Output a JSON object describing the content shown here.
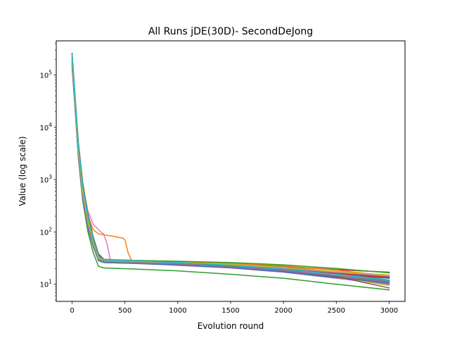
{
  "chart_data": {
    "type": "line",
    "title": "All Runs jDE(30D)- SecondDeJong",
    "xlabel": "Evolution round",
    "ylabel": "Value (log scale)",
    "yscale": "log",
    "xlim": [
      -150,
      3150
    ],
    "ylim": [
      4.7,
      450000
    ],
    "x_ticks": [
      {
        "value": 0,
        "label": "0"
      },
      {
        "value": 500,
        "label": "500"
      },
      {
        "value": 1000,
        "label": "1000"
      },
      {
        "value": 1500,
        "label": "1500"
      },
      {
        "value": 2000,
        "label": "2000"
      },
      {
        "value": 2500,
        "label": "2500"
      },
      {
        "value": 3000,
        "label": "3000"
      }
    ],
    "y_ticks": [
      {
        "value": 10,
        "base": "10",
        "exp": "1"
      },
      {
        "value": 100,
        "base": "10",
        "exp": "2"
      },
      {
        "value": 1000,
        "base": "10",
        "exp": "3"
      },
      {
        "value": 10000,
        "base": "10",
        "exp": "4"
      },
      {
        "value": 100000,
        "base": "10",
        "exp": "5"
      }
    ],
    "grid": false,
    "legend": "none",
    "series": [
      {
        "color": "#1f77b4",
        "x": [
          0,
          30,
          60,
          100,
          150,
          200,
          250,
          300,
          600,
          1000,
          1500,
          2000,
          2500,
          3000
        ],
        "y": [
          180000,
          25000,
          3000,
          500,
          150,
          60,
          30,
          27,
          25.5,
          24,
          22,
          19,
          16,
          13
        ]
      },
      {
        "color": "#ff7f0e",
        "x": [
          0,
          30,
          60,
          100,
          150,
          200,
          250,
          300,
          400,
          480,
          500,
          530,
          560,
          600,
          1000,
          1500,
          2000,
          2500,
          3000
        ],
        "y": [
          250000,
          30000,
          4000,
          700,
          200,
          110,
          92,
          88,
          82,
          76,
          70,
          40,
          29,
          28,
          26,
          23,
          19,
          15,
          11
        ]
      },
      {
        "color": "#2ca02c",
        "x": [
          0,
          30,
          60,
          100,
          150,
          200,
          250,
          300,
          600,
          1000,
          1500,
          2000,
          2500,
          3000
        ],
        "y": [
          150000,
          20000,
          2500,
          400,
          100,
          40,
          22,
          20.5,
          19.5,
          18,
          15.5,
          13,
          10,
          7.8
        ]
      },
      {
        "color": "#d62728",
        "x": [
          0,
          30,
          60,
          100,
          150,
          200,
          250,
          300,
          600,
          1000,
          1500,
          2000,
          2500,
          3000
        ],
        "y": [
          200000,
          28000,
          3500,
          600,
          170,
          65,
          32,
          28,
          27,
          25.5,
          24,
          22,
          19,
          17
        ]
      },
      {
        "color": "#9467bd",
        "x": [
          0,
          30,
          60,
          100,
          150,
          200,
          250,
          300,
          600,
          1000,
          1500,
          2000,
          2500,
          3000
        ],
        "y": [
          160000,
          22000,
          2800,
          450,
          130,
          55,
          29,
          26,
          25,
          23,
          20.5,
          17,
          13,
          10
        ]
      },
      {
        "color": "#8c564b",
        "x": [
          0,
          30,
          60,
          100,
          150,
          200,
          250,
          300,
          600,
          1000,
          1500,
          2000,
          2500,
          3000
        ],
        "y": [
          260000,
          35000,
          5000,
          900,
          220,
          80,
          38,
          30,
          28.5,
          27,
          25,
          22,
          17,
          12
        ]
      },
      {
        "color": "#e377c2",
        "x": [
          0,
          30,
          60,
          100,
          150,
          200,
          250,
          300,
          330,
          360,
          600,
          1000,
          1500,
          2000,
          2500,
          3000
        ],
        "y": [
          220000,
          30000,
          4200,
          800,
          250,
          140,
          110,
          90,
          60,
          30,
          27,
          25,
          22.5,
          19,
          15,
          12
        ]
      },
      {
        "color": "#7f7f7f",
        "x": [
          0,
          30,
          60,
          100,
          150,
          200,
          250,
          300,
          600,
          1000,
          1500,
          2000,
          2500,
          3000
        ],
        "y": [
          170000,
          24000,
          3200,
          520,
          140,
          58,
          30,
          27.5,
          26.5,
          25,
          23,
          20,
          16.5,
          14
        ]
      },
      {
        "color": "#bcbd22",
        "x": [
          0,
          30,
          60,
          100,
          150,
          200,
          250,
          300,
          600,
          1000,
          1500,
          2000,
          2500,
          3000
        ],
        "y": [
          190000,
          26000,
          3400,
          560,
          150,
          62,
          31,
          28,
          27,
          25,
          22,
          18,
          13.5,
          9.5
        ]
      },
      {
        "color": "#17becf",
        "x": [
          0,
          30,
          60,
          100,
          150,
          200,
          250,
          300,
          600,
          1000,
          1500,
          2000,
          2500,
          3000
        ],
        "y": [
          210000,
          27000,
          3600,
          620,
          160,
          66,
          33,
          29,
          28,
          26.5,
          24,
          20.5,
          16,
          11.5
        ]
      },
      {
        "color": "#1f77b4",
        "x": [
          0,
          30,
          60,
          100,
          150,
          200,
          250,
          300,
          600,
          1000,
          1500,
          2000,
          2500,
          3000
        ],
        "y": [
          140000,
          21000,
          2700,
          430,
          120,
          52,
          28,
          26,
          25,
          23.5,
          21,
          17.5,
          13.5,
          10.5
        ]
      },
      {
        "color": "#ff7f0e",
        "x": [
          0,
          30,
          60,
          100,
          150,
          200,
          250,
          300,
          600,
          1000,
          1500,
          2000,
          2500,
          3000
        ],
        "y": [
          230000,
          29000,
          3900,
          680,
          180,
          70,
          34,
          29.5,
          28.5,
          27,
          25,
          22.5,
          18.5,
          14.5
        ]
      },
      {
        "color": "#2ca02c",
        "x": [
          0,
          30,
          60,
          100,
          150,
          200,
          250,
          300,
          600,
          1000,
          1500,
          2000,
          2500,
          3000
        ],
        "y": [
          175000,
          24500,
          3100,
          510,
          145,
          60,
          31,
          29,
          28.5,
          27.5,
          26,
          23.5,
          20,
          16.5
        ]
      },
      {
        "color": "#d62728",
        "x": [
          0,
          30,
          60,
          100,
          150,
          200,
          250,
          300,
          600,
          1000,
          1500,
          2000,
          2500,
          3000
        ],
        "y": [
          195000,
          25500,
          3300,
          540,
          150,
          61,
          30,
          27,
          26,
          24.5,
          22.5,
          19.5,
          16,
          13.5
        ]
      },
      {
        "color": "#9467bd",
        "x": [
          0,
          30,
          60,
          100,
          150,
          200,
          250,
          300,
          600,
          1000,
          1500,
          2000,
          2500,
          3000
        ],
        "y": [
          155000,
          21500,
          2750,
          440,
          125,
          54,
          28.5,
          26.5,
          25.5,
          24,
          21.5,
          18,
          14,
          11
        ]
      },
      {
        "color": "#8c564b",
        "x": [
          0,
          30,
          60,
          100,
          150,
          200,
          250,
          300,
          600,
          1000,
          1500,
          2000,
          2500,
          3000
        ],
        "y": [
          240000,
          32000,
          4600,
          850,
          210,
          75,
          36,
          28,
          27,
          25.5,
          23,
          19,
          14,
          8.5
        ]
      },
      {
        "color": "#e377c2",
        "x": [
          0,
          30,
          60,
          100,
          150,
          200,
          250,
          300,
          600,
          1000,
          1500,
          2000,
          2500,
          3000
        ],
        "y": [
          185000,
          25000,
          3250,
          530,
          148,
          61,
          31,
          28,
          27,
          25.5,
          23.5,
          20.5,
          17,
          14.5
        ]
      },
      {
        "color": "#7f7f7f",
        "x": [
          0,
          30,
          60,
          100,
          150,
          200,
          250,
          300,
          600,
          1000,
          1500,
          2000,
          2500,
          3000
        ],
        "y": [
          165000,
          23000,
          3000,
          490,
          138,
          57,
          30,
          27,
          26,
          24.5,
          22,
          18.5,
          14.5,
          11.5
        ]
      },
      {
        "color": "#bcbd22",
        "x": [
          0,
          30,
          60,
          100,
          150,
          200,
          250,
          300,
          600,
          1000,
          1500,
          2000,
          2500,
          3000
        ],
        "y": [
          205000,
          26500,
          3500,
          580,
          155,
          63,
          31.5,
          28.5,
          27.5,
          26,
          24,
          21,
          17.5,
          15
        ]
      },
      {
        "color": "#17becf",
        "x": [
          0,
          30,
          60,
          100,
          150,
          200,
          250,
          300,
          600,
          1000,
          1500,
          2000,
          2500,
          3000
        ],
        "y": [
          245000,
          31000,
          4400,
          780,
          195,
          72,
          35,
          29,
          28,
          26,
          23,
          19.5,
          15.5,
          12
        ]
      }
    ]
  }
}
